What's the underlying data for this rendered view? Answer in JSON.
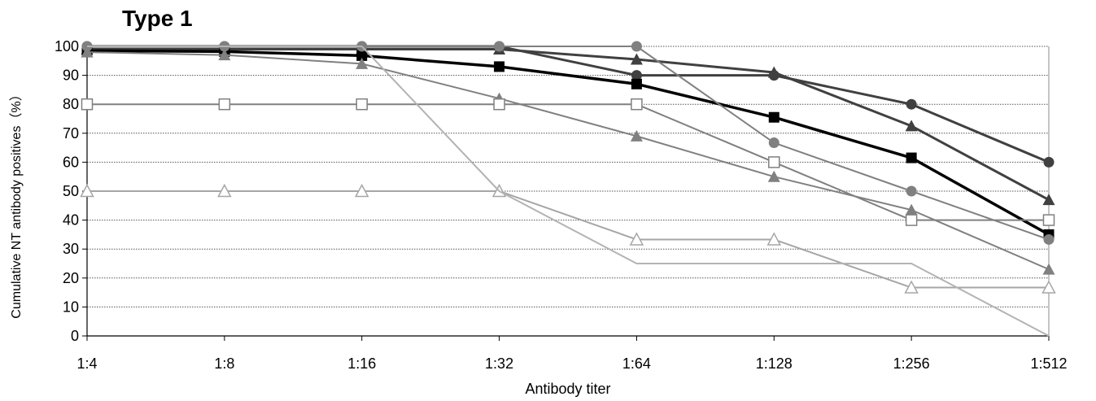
{
  "chart_data": {
    "type": "line",
    "title": "Type 1",
    "xlabel": "Antibody titer",
    "ylabel": "Cumulative NT antibody positives（%）",
    "categories": [
      "1:4",
      "1:8",
      "1:16",
      "1:32",
      "1:64",
      "1:128",
      "1:256",
      "1:512"
    ],
    "ylim": [
      0,
      100
    ],
    "yticks": [
      0,
      10,
      20,
      30,
      40,
      50,
      60,
      70,
      80,
      90,
      100
    ],
    "grid": true,
    "series": [
      {
        "values": [
          100,
          100,
          100,
          100,
          90,
          90,
          80,
          60
        ],
        "marker": "circle",
        "color": "#404040",
        "stroke_width": 3
      },
      {
        "values": [
          99,
          99,
          99,
          99,
          95.5,
          91,
          72.5,
          47
        ],
        "marker": "triangle",
        "color": "#404040",
        "stroke_width": 3
      },
      {
        "values": [
          98.5,
          98.2,
          96.8,
          93,
          87,
          75.5,
          61.5,
          35
        ],
        "marker": "square",
        "color": "#000000",
        "stroke_width": 3.5
      },
      {
        "values": [
          98,
          97,
          94,
          82,
          69,
          55,
          43.5,
          23
        ],
        "marker": "triangle",
        "color": "#808080",
        "stroke_width": 2
      },
      {
        "values": [
          100,
          100,
          100,
          100,
          100,
          66.7,
          50,
          33.3
        ],
        "marker": "circle",
        "color": "#808080",
        "stroke_width": 2
      },
      {
        "values": [
          80,
          80,
          80,
          80,
          80,
          60,
          40,
          40
        ],
        "marker": "square-open",
        "color": "#808080",
        "stroke_width": 2
      },
      {
        "values": [
          50,
          50,
          50,
          50,
          33.3,
          33.3,
          16.7,
          16.7
        ],
        "marker": "triangle-open",
        "color": "#a6a6a6",
        "stroke_width": 2
      },
      {
        "values": [
          100,
          100,
          100,
          50,
          25,
          25,
          25,
          0
        ],
        "marker": "none",
        "color": "#b3b3b3",
        "stroke_width": 2
      }
    ]
  }
}
